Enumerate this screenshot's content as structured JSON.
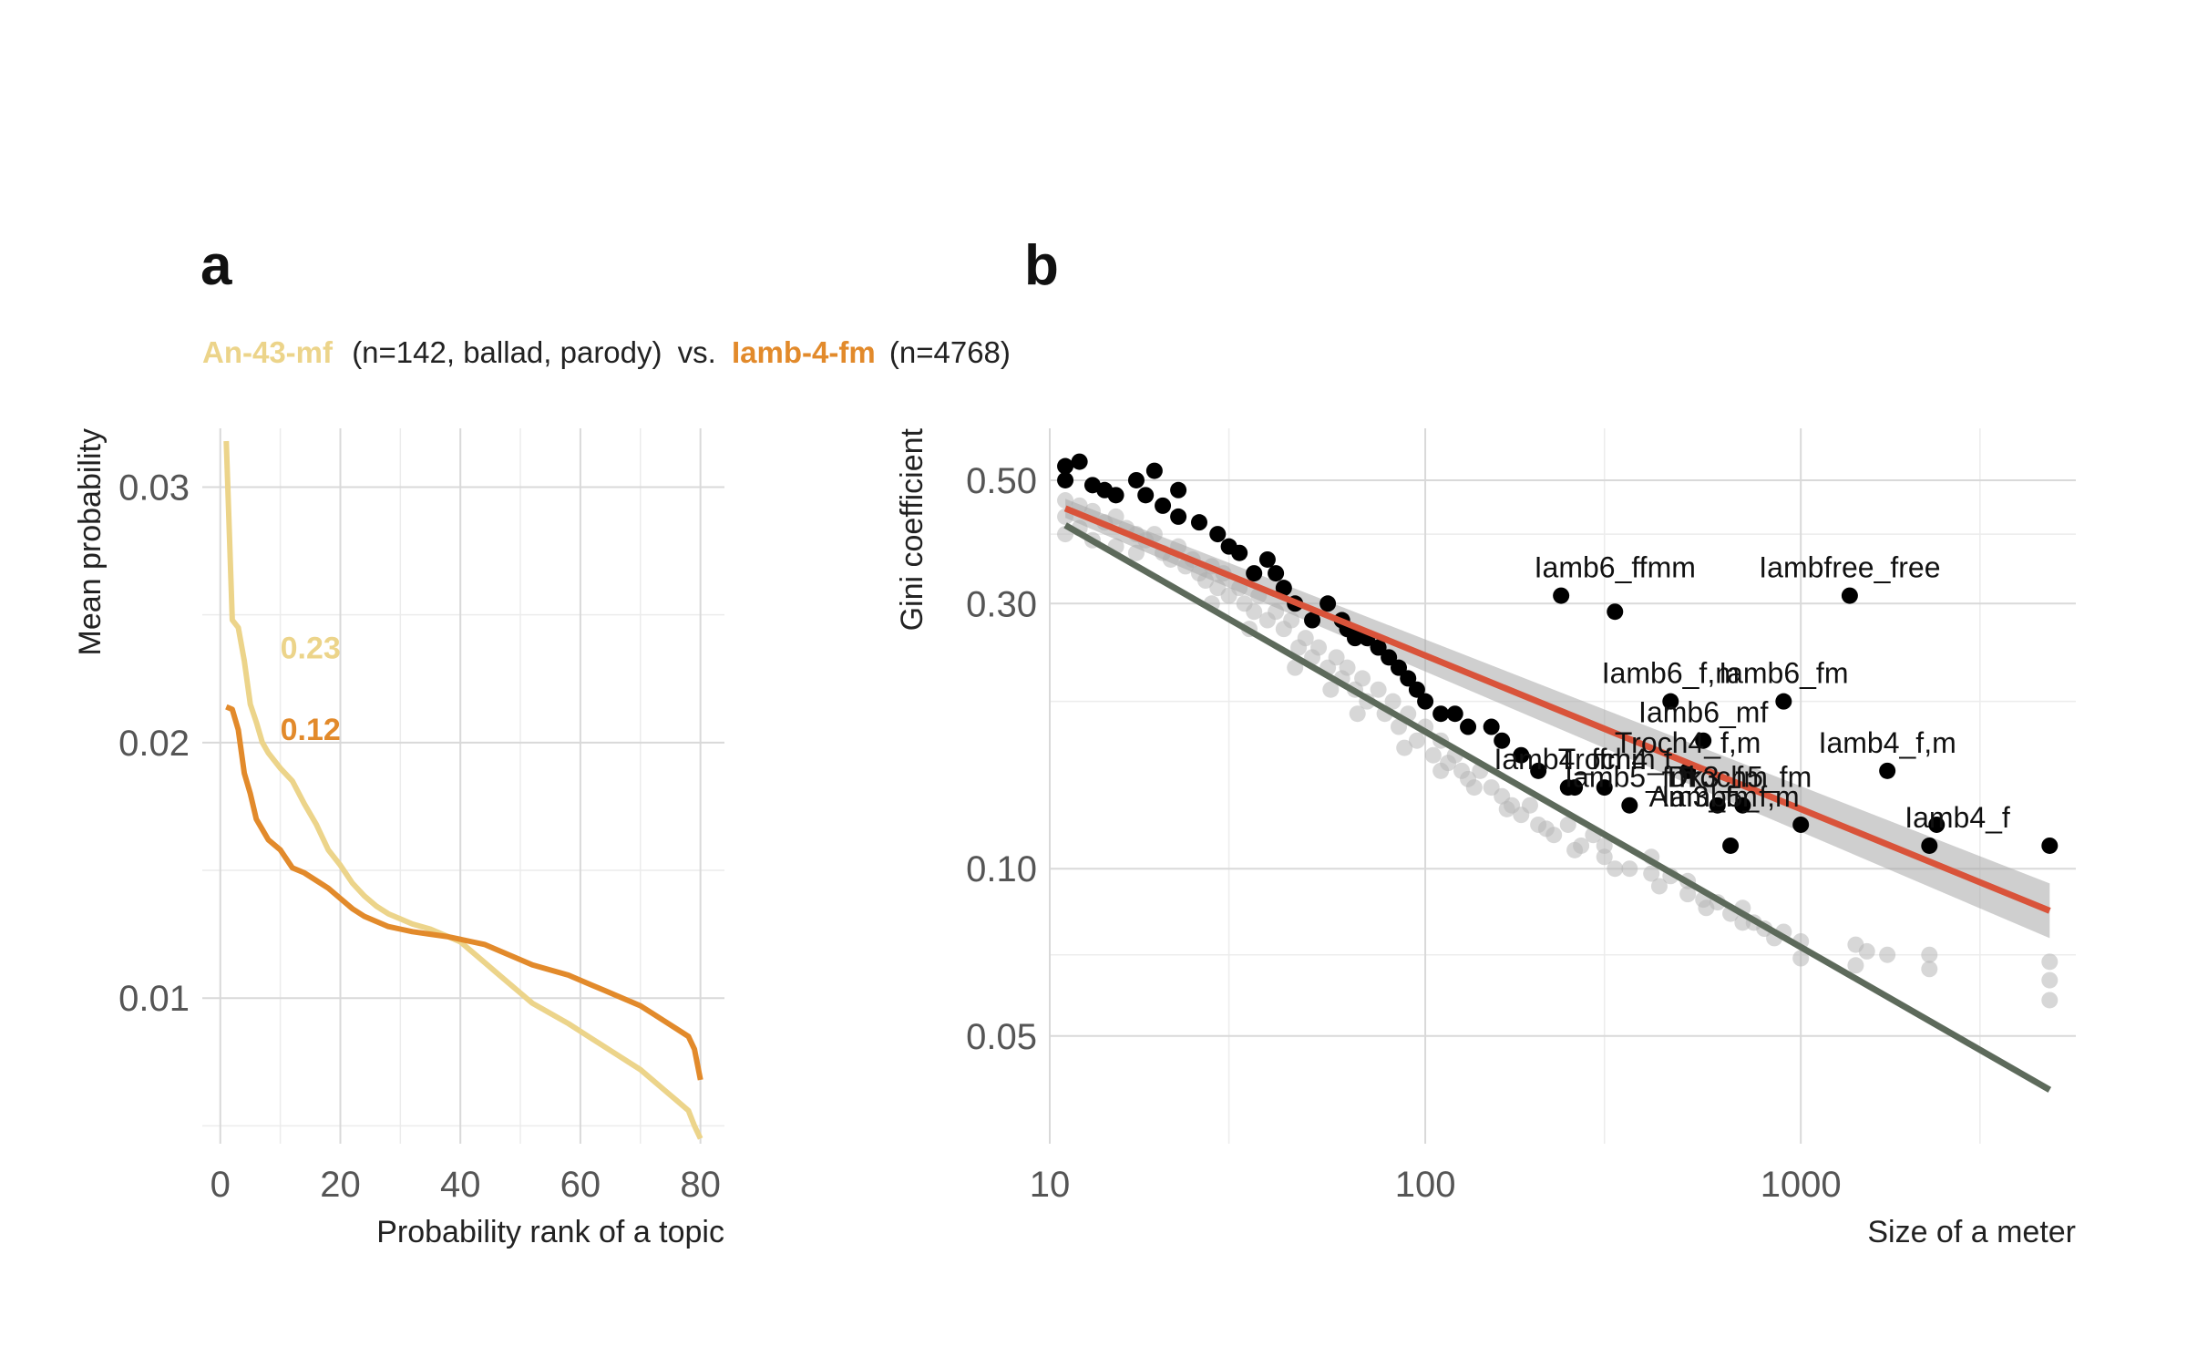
{
  "panel_a": {
    "letter": "a",
    "subtitle": {
      "series1_name": "An-43-mf",
      "series1_info": "(n=142, ballad, parody)",
      "vs": "vs.",
      "series2_name": "Iamb-4-fm",
      "series2_info": "(n=4768)"
    },
    "colors": {
      "series1": "#ecd48a",
      "series2": "#e28a2b"
    }
  },
  "panel_b": {
    "letter": "b",
    "colors": {
      "all_points": "#b7b7b7",
      "labeled_points": "#000000",
      "fit_labeled": "#d9533a",
      "fit_all": "#5d6a5b",
      "ribbon": "#a8a8a8"
    }
  },
  "chart_data": [
    {
      "type": "line",
      "title": "",
      "xlabel": "Probability rank of a topic",
      "ylabel": "Mean probability",
      "xlim": [
        -3,
        84
      ],
      "ylim": [
        0.0043,
        0.0323
      ],
      "x_ticks": [
        0,
        20,
        40,
        60,
        80
      ],
      "y_ticks": [
        0.01,
        0.02,
        0.03
      ],
      "x_tick_labels": [
        "0",
        "20",
        "40",
        "60",
        "80"
      ],
      "y_tick_labels": [
        "0.01",
        "0.02",
        "0.03"
      ],
      "grid": true,
      "legend": "subtitle",
      "x": [
        1,
        2,
        3,
        4,
        5,
        6,
        7,
        8,
        10,
        12,
        14,
        16,
        18,
        20,
        22,
        24,
        26,
        28,
        30,
        32,
        35,
        38,
        40,
        42,
        44,
        46,
        48,
        50,
        52,
        55,
        58,
        60,
        62,
        64,
        66,
        68,
        70,
        72,
        74,
        76,
        78,
        79,
        80
      ],
      "series": [
        {
          "name": "An-43-mf",
          "values": [
            0.0318,
            0.0248,
            0.0245,
            0.0232,
            0.0215,
            0.0208,
            0.02,
            0.0196,
            0.019,
            0.0185,
            0.0176,
            0.0168,
            0.0158,
            0.0152,
            0.0145,
            0.014,
            0.0136,
            0.0133,
            0.0131,
            0.0129,
            0.0127,
            0.0124,
            0.0122,
            0.0118,
            0.0114,
            0.011,
            0.0106,
            0.0102,
            0.0098,
            0.0094,
            0.009,
            0.0087,
            0.0084,
            0.0081,
            0.0078,
            0.0075,
            0.0072,
            0.0068,
            0.0064,
            0.006,
            0.0056,
            0.005,
            0.0045
          ],
          "annotation": "0.23"
        },
        {
          "name": "Iamb-4-fm",
          "values": [
            0.0214,
            0.0213,
            0.0205,
            0.0188,
            0.018,
            0.017,
            0.0166,
            0.0162,
            0.0158,
            0.0151,
            0.0149,
            0.0146,
            0.0143,
            0.0139,
            0.0135,
            0.0132,
            0.013,
            0.0128,
            0.0127,
            0.0126,
            0.0125,
            0.0124,
            0.0123,
            0.0122,
            0.0121,
            0.0119,
            0.0117,
            0.0115,
            0.0113,
            0.0111,
            0.0109,
            0.0107,
            0.0105,
            0.0103,
            0.0101,
            0.0099,
            0.0097,
            0.0094,
            0.0091,
            0.0088,
            0.0085,
            0.008,
            0.0068
          ],
          "annotation": "0.12"
        }
      ]
    },
    {
      "type": "scatter",
      "title": "",
      "xlabel": "Size of a meter",
      "ylabel": "Gini coefficient",
      "x_scale": "log",
      "y_scale": "log",
      "xlim": [
        10,
        5400
      ],
      "ylim": [
        0.032,
        0.62
      ],
      "x_ticks": [
        10,
        100,
        1000
      ],
      "y_ticks": [
        0.05,
        0.1,
        0.3,
        0.5
      ],
      "x_tick_labels": [
        "10",
        "100",
        "1000"
      ],
      "y_tick_labels": [
        "0.05",
        "0.10",
        "0.30",
        "0.50"
      ],
      "grid": true,
      "series": [
        {
          "name": "all",
          "points": [
            [
              11,
              0.46
            ],
            [
              11,
              0.43
            ],
            [
              11,
              0.4
            ],
            [
              12,
              0.45
            ],
            [
              12,
              0.41
            ],
            [
              13,
              0.44
            ],
            [
              13,
              0.39
            ],
            [
              14,
              0.42
            ],
            [
              15,
              0.43
            ],
            [
              15,
              0.38
            ],
            [
              16,
              0.41
            ],
            [
              17,
              0.4
            ],
            [
              17,
              0.37
            ],
            [
              18,
              0.39
            ],
            [
              19,
              0.4
            ],
            [
              20,
              0.37
            ],
            [
              21,
              0.36
            ],
            [
              22,
              0.38
            ],
            [
              23,
              0.35
            ],
            [
              24,
              0.36
            ],
            [
              25,
              0.34
            ],
            [
              26,
              0.33
            ],
            [
              27,
              0.35
            ],
            [
              28,
              0.32
            ],
            [
              29,
              0.34
            ],
            [
              30,
              0.31
            ],
            [
              32,
              0.32
            ],
            [
              33,
              0.3
            ],
            [
              35,
              0.29
            ],
            [
              36,
              0.31
            ],
            [
              38,
              0.28
            ],
            [
              40,
              0.29
            ],
            [
              42,
              0.27
            ],
            [
              44,
              0.28
            ],
            [
              46,
              0.25
            ],
            [
              48,
              0.26
            ],
            [
              50,
              0.24
            ],
            [
              52,
              0.25
            ],
            [
              55,
              0.23
            ],
            [
              58,
              0.24
            ],
            [
              60,
              0.22
            ],
            [
              62,
              0.23
            ],
            [
              65,
              0.21
            ],
            [
              68,
              0.22
            ],
            [
              70,
              0.2
            ],
            [
              75,
              0.21
            ],
            [
              78,
              0.19
            ],
            [
              82,
              0.2
            ],
            [
              85,
              0.18
            ],
            [
              90,
              0.19
            ],
            [
              95,
              0.17
            ],
            [
              100,
              0.18
            ],
            [
              105,
              0.16
            ],
            [
              110,
              0.17
            ],
            [
              115,
              0.155
            ],
            [
              120,
              0.16
            ],
            [
              125,
              0.15
            ],
            [
              130,
              0.145
            ],
            [
              140,
              0.15
            ],
            [
              150,
              0.14
            ],
            [
              160,
              0.135
            ],
            [
              170,
              0.13
            ],
            [
              180,
              0.125
            ],
            [
              190,
              0.13
            ],
            [
              200,
              0.12
            ],
            [
              220,
              0.115
            ],
            [
              240,
              0.12
            ],
            [
              260,
              0.11
            ],
            [
              280,
              0.115
            ],
            [
              300,
              0.105
            ],
            [
              300,
              0.11
            ],
            [
              350,
              0.1
            ],
            [
              400,
              0.105
            ],
            [
              400,
              0.098
            ],
            [
              450,
              0.097
            ],
            [
              500,
              0.09
            ],
            [
              500,
              0.095
            ],
            [
              550,
              0.088
            ],
            [
              600,
              0.087
            ],
            [
              700,
              0.08
            ],
            [
              700,
              0.085
            ],
            [
              800,
              0.078
            ],
            [
              900,
              0.077
            ],
            [
              1000,
              0.074
            ],
            [
              1000,
              0.069
            ],
            [
              1400,
              0.073
            ],
            [
              1400,
              0.067
            ],
            [
              1500,
              0.071
            ],
            [
              1700,
              0.07
            ],
            [
              2200,
              0.066
            ],
            [
              2200,
              0.07
            ],
            [
              4600,
              0.063
            ],
            [
              4600,
              0.058
            ],
            [
              4600,
              0.068
            ],
            [
              27,
              0.3
            ],
            [
              34,
              0.27
            ],
            [
              45,
              0.23
            ],
            [
              56,
              0.21
            ],
            [
              66,
              0.19
            ],
            [
              88,
              0.165
            ],
            [
              110,
              0.15
            ],
            [
              135,
              0.14
            ],
            [
              165,
              0.128
            ],
            [
              210,
              0.118
            ],
            [
              250,
              0.108
            ],
            [
              320,
              0.1
            ],
            [
              420,
              0.093
            ],
            [
              560,
              0.085
            ],
            [
              650,
              0.083
            ],
            [
              750,
              0.08
            ],
            [
              850,
              0.075
            ]
          ]
        },
        {
          "name": "labeled",
          "points": [
            [
              11,
              0.53
            ],
            [
              12,
              0.54
            ],
            [
              11,
              0.5
            ],
            [
              13,
              0.49
            ],
            [
              14,
              0.48
            ],
            [
              15,
              0.47
            ],
            [
              17,
              0.5
            ],
            [
              19,
              0.52
            ],
            [
              18,
              0.47
            ],
            [
              20,
              0.45
            ],
            [
              22,
              0.48
            ],
            [
              22,
              0.43
            ],
            [
              25,
              0.42
            ],
            [
              28,
              0.4
            ],
            [
              30,
              0.38
            ],
            [
              32,
              0.37
            ],
            [
              35,
              0.34
            ],
            [
              38,
              0.36
            ],
            [
              40,
              0.34
            ],
            [
              42,
              0.32
            ],
            [
              45,
              0.3
            ],
            [
              50,
              0.28
            ],
            [
              55,
              0.3
            ],
            [
              60,
              0.28
            ],
            [
              62,
              0.27
            ],
            [
              65,
              0.26
            ],
            [
              70,
              0.26
            ],
            [
              75,
              0.25
            ],
            [
              80,
              0.24
            ],
            [
              85,
              0.23
            ],
            [
              90,
              0.22
            ],
            [
              95,
              0.21
            ],
            [
              100,
              0.2
            ],
            [
              110,
              0.19
            ],
            [
              120,
              0.19
            ],
            [
              130,
              0.18
            ],
            [
              150,
              0.18
            ],
            [
              160,
              0.17
            ],
            [
              180,
              0.16
            ],
            [
              200,
              0.15
            ],
            [
              230,
              0.31
            ],
            [
              320,
              0.29
            ],
            [
              250,
              0.14
            ],
            [
              300,
              0.14
            ],
            [
              350,
              0.13
            ],
            [
              450,
              0.2
            ],
            [
              500,
              0.15
            ],
            [
              550,
              0.17
            ],
            [
              600,
              0.13
            ],
            [
              650,
              0.11
            ],
            [
              700,
              0.13
            ],
            [
              900,
              0.2
            ],
            [
              1000,
              0.12
            ],
            [
              1350,
              0.31
            ],
            [
              1700,
              0.15
            ],
            [
              2200,
              0.11
            ],
            [
              4600,
              0.11
            ],
            [
              2300,
              0.12
            ],
            [
              240,
              0.14
            ]
          ]
        },
        {
          "name": "fit_labeled",
          "x": [
            11,
            4600
          ],
          "values": [
            0.445,
            0.084
          ]
        },
        {
          "name": "fit_all",
          "x": [
            11,
            4600
          ],
          "values": [
            0.415,
            0.04
          ]
        }
      ],
      "annotations": [
        {
          "text": "Iamb6_ffmm",
          "x": 320,
          "y": 0.31
        },
        {
          "text": "Iambfree_free",
          "x": 1350,
          "y": 0.31
        },
        {
          "text": "Iamb6_f,m",
          "x": 450,
          "y": 0.2
        },
        {
          "text": "Iamb6_fm",
          "x": 900,
          "y": 0.2
        },
        {
          "text": "Iamb6_mf",
          "x": 550,
          "y": 0.17
        },
        {
          "text": "Troch4_f,m",
          "x": 500,
          "y": 0.15
        },
        {
          "text": "Iamb4_f,m",
          "x": 1700,
          "y": 0.15
        },
        {
          "text": "Troch4_f",
          "x": 320,
          "y": 0.14
        },
        {
          "text": "Dk3_fm",
          "x": 600,
          "y": 0.13
        },
        {
          "text": "Iamb4_ffmm",
          "x": 250,
          "y": 0.14
        },
        {
          "text": "Iamb5_fm",
          "x": 350,
          "y": 0.13
        },
        {
          "text": "Troch5_fm",
          "x": 700,
          "y": 0.13
        },
        {
          "text": "Am3_fm",
          "x": 550,
          "y": 0.12
        },
        {
          "text": "Iamb5_f,m",
          "x": 650,
          "y": 0.12
        },
        {
          "text": "Iamb4_f",
          "x": 4600,
          "y": 0.11
        }
      ]
    }
  ]
}
